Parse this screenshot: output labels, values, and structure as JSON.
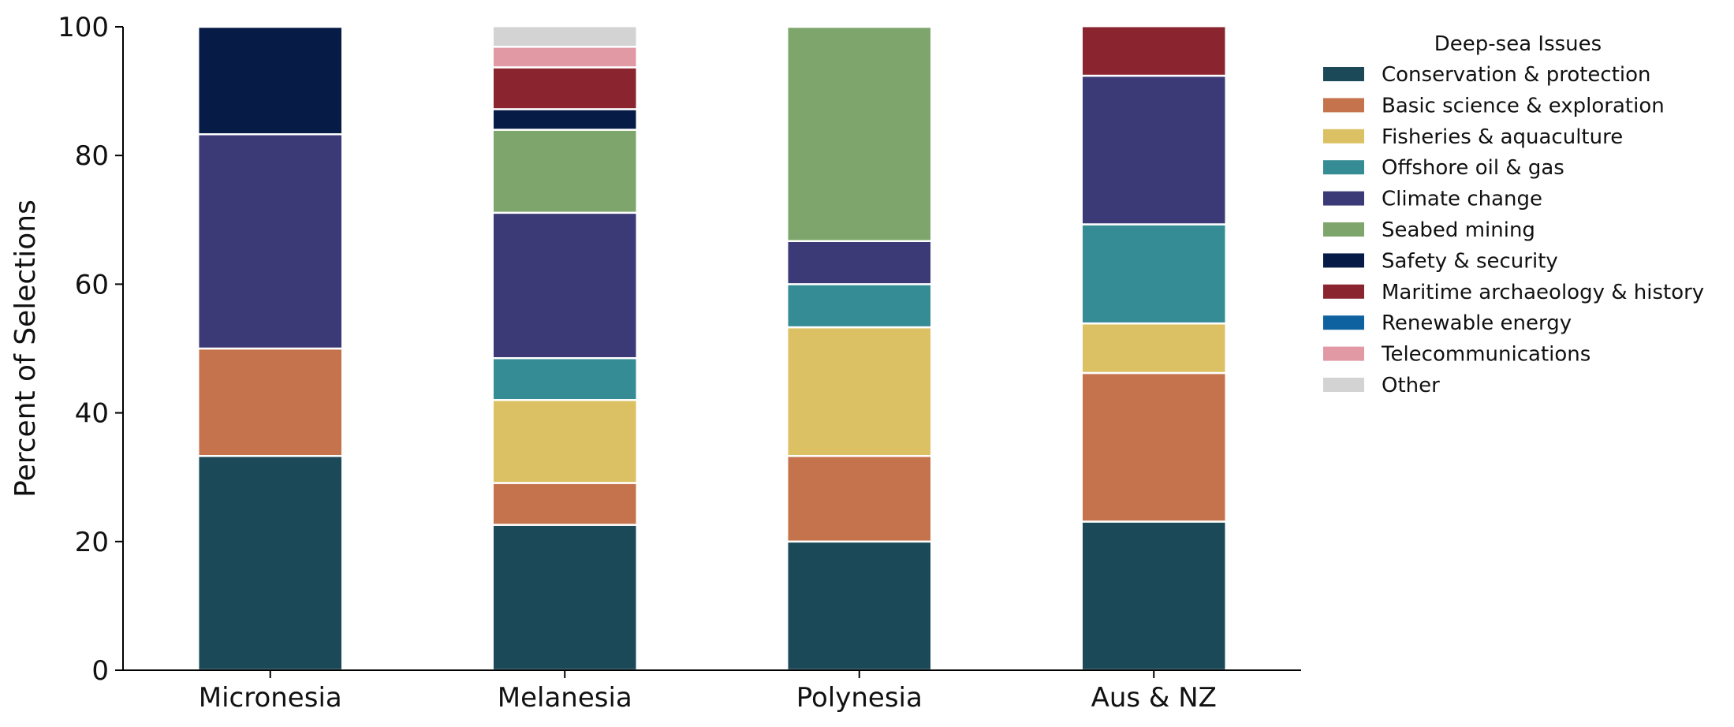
{
  "chart_data": {
    "type": "bar",
    "stacked": true,
    "ylabel": "Percent of Selections",
    "ylim": [
      0,
      100
    ],
    "yticks": [
      0,
      20,
      40,
      60,
      80,
      100
    ],
    "categories": [
      "Micronesia",
      "Melanesia",
      "Polynesia",
      "Aus & NZ"
    ],
    "legend": {
      "title": "Deep-sea Issues",
      "placement": "upper-right outside"
    },
    "series": [
      {
        "name": "Conservation & protection",
        "color": "#1B4957",
        "values": [
          33.3,
          22.6,
          20.0,
          23.1
        ]
      },
      {
        "name": "Basic science & exploration",
        "color": "#C5734C",
        "values": [
          16.7,
          6.5,
          13.3,
          23.1
        ]
      },
      {
        "name": "Fisheries & aquaculture",
        "color": "#DBC164",
        "values": [
          0,
          12.9,
          20.0,
          7.7
        ]
      },
      {
        "name": "Offshore oil & gas",
        "color": "#368C94",
        "values": [
          0,
          6.5,
          6.7,
          15.4
        ]
      },
      {
        "name": "Climate change",
        "color": "#3C3A76",
        "values": [
          33.3,
          22.6,
          6.7,
          23.1
        ]
      },
      {
        "name": "Seabed mining",
        "color": "#7EA66C",
        "values": [
          0,
          12.9,
          33.3,
          0
        ]
      },
      {
        "name": "Safety & security",
        "color": "#061C46",
        "values": [
          16.7,
          3.2,
          0,
          0
        ]
      },
      {
        "name": "Maritime archaeology & history",
        "color": "#8A2530",
        "values": [
          0,
          6.5,
          0,
          7.7
        ]
      },
      {
        "name": "Renewable energy",
        "color": "#0F62A0",
        "values": [
          0,
          0,
          0,
          0
        ]
      },
      {
        "name": "Telecommunications",
        "color": "#E19AA4",
        "values": [
          0,
          3.2,
          0,
          0
        ]
      },
      {
        "name": "Other",
        "color": "#D3D3D3",
        "values": [
          0,
          3.2,
          0,
          0
        ]
      }
    ]
  }
}
